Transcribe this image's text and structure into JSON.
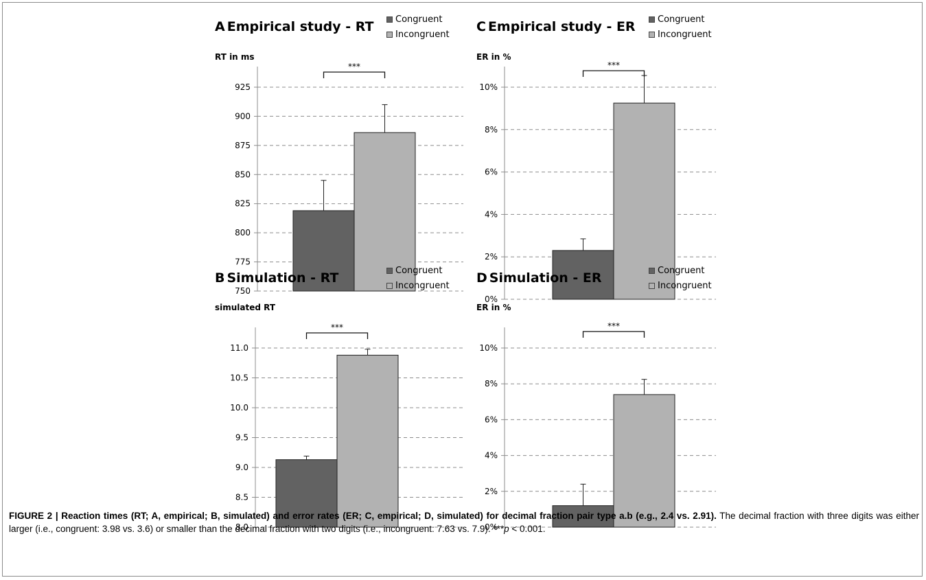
{
  "colors": {
    "congruent": "#626262",
    "incongruent": "#b2b2b2",
    "grid": "#8c8c8c",
    "axis": "#8c8c8c"
  },
  "legend": {
    "congruent": "Congruent",
    "incongruent": "Incongruent"
  },
  "chart_data": [
    {
      "id": "A",
      "type": "bar",
      "letter": "A",
      "title": "Empirical study - RT",
      "ylabel": "RT in ms",
      "categories": [
        "Congruent",
        "Incongruent"
      ],
      "values": [
        819,
        886
      ],
      "errors": [
        26,
        24
      ],
      "ylim": [
        750,
        925
      ],
      "yticks": [
        750,
        775,
        800,
        825,
        850,
        875,
        900,
        925
      ],
      "ytick_labels": [
        "750",
        "775",
        "800",
        "825",
        "850",
        "875",
        "900",
        "925"
      ],
      "significance": "***",
      "grid": true,
      "legend_position": "top-right"
    },
    {
      "id": "C",
      "type": "bar",
      "letter": "C",
      "title": "Empirical study - ER",
      "ylabel": "ER in %",
      "categories": [
        "Congruent",
        "Incongruent"
      ],
      "values": [
        2.3,
        9.25
      ],
      "errors": [
        0.55,
        1.3
      ],
      "ylim": [
        0,
        10
      ],
      "yticks": [
        0,
        2,
        4,
        6,
        8,
        10
      ],
      "ytick_labels": [
        "0%",
        "2%",
        "4%",
        "6%",
        "8%",
        "10%"
      ],
      "significance": "***",
      "grid": true,
      "legend_position": "top-right"
    },
    {
      "id": "B",
      "type": "bar",
      "letter": "B",
      "title": "Simulation - RT",
      "ylabel": "simulated RT",
      "categories": [
        "Congruent",
        "Incongruent"
      ],
      "values": [
        9.13,
        10.88
      ],
      "errors": [
        0.06,
        0.1
      ],
      "ylim": [
        8.0,
        11.0
      ],
      "yticks": [
        8.0,
        8.5,
        9.0,
        9.5,
        10.0,
        10.5,
        11.0
      ],
      "ytick_labels": [
        "8.0",
        "8.5",
        "9.0",
        "9.5",
        "10.0",
        "10.5",
        "11.0"
      ],
      "significance": "***",
      "grid": true,
      "legend_position": "top-right"
    },
    {
      "id": "D",
      "type": "bar",
      "letter": "D",
      "title": "Simulation - ER",
      "ylabel": "ER in %",
      "categories": [
        "Congruent",
        "Incongruent"
      ],
      "values": [
        1.2,
        7.4
      ],
      "errors": [
        1.2,
        0.85
      ],
      "ylim": [
        0,
        10
      ],
      "yticks": [
        0,
        2,
        4,
        6,
        8,
        10
      ],
      "ytick_labels": [
        "0%",
        "2%",
        "4%",
        "6%",
        "8%",
        "10%"
      ],
      "significance": "***",
      "grid": true,
      "legend_position": "top-right"
    }
  ],
  "caption": {
    "bold": "FIGURE 2 | Reaction times (RT; A, empirical; B, simulated) and error rates (ER; C, empirical; D, simulated) for decimal fraction pair type a.b (e.g., 2.4 vs. 2.91).",
    "text1": " The decimal fraction with three digits was either larger (i.e., congruent: 3.98 vs. 3.6) or smaller than the decimal fraction with two digits (i.e., incongruent: 7.63 vs. 7.9). ***",
    "p": "p",
    "text2": " < 0.001."
  }
}
